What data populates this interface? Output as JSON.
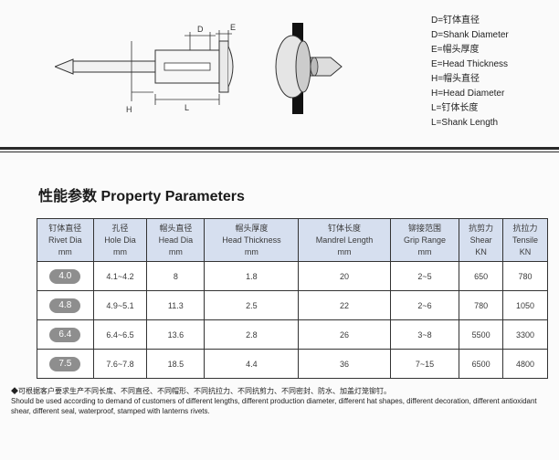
{
  "legend": {
    "d1": "D=钉体直径",
    "d2": "D=Shank Diameter",
    "e1": "E=帽头厚度",
    "e2": "E=Head Thickness",
    "h1": "H=帽头直径",
    "h2": "H=Head Diameter",
    "l1": "L=钉体长度",
    "l2": "L=Shank Length"
  },
  "section_title": "性能参数  Property Parameters",
  "table": {
    "headers": [
      {
        "cn": "钉体直径",
        "en": "Rivet Dia",
        "unit": "mm"
      },
      {
        "cn": "孔径",
        "en": "Hole Dia",
        "unit": "mm"
      },
      {
        "cn": "帽头直径",
        "en": "Head Dia",
        "unit": "mm"
      },
      {
        "cn": "帽头厚度",
        "en": "Head Thickness",
        "unit": "mm"
      },
      {
        "cn": "钉体长度",
        "en": "Mandrel Length",
        "unit": "mm"
      },
      {
        "cn": "铆接范围",
        "en": "Grip Range",
        "unit": "mm"
      },
      {
        "cn": "抗剪力",
        "en": "Shear",
        "unit": "KN"
      },
      {
        "cn": "抗拉力",
        "en": "Tensile",
        "unit": "KN"
      }
    ],
    "rows": [
      {
        "dia": "4.0",
        "hole": "4.1~4.2",
        "head": "8",
        "thick": "1.8",
        "mandrel": "20",
        "grip": "2~5",
        "shear": "650",
        "tensile": "780"
      },
      {
        "dia": "4.8",
        "hole": "4.9~5.1",
        "head": "11.3",
        "thick": "2.5",
        "mandrel": "22",
        "grip": "2~6",
        "shear": "780",
        "tensile": "1050"
      },
      {
        "dia": "6.4",
        "hole": "6.4~6.5",
        "head": "13.6",
        "thick": "2.8",
        "mandrel": "26",
        "grip": "3~8",
        "shear": "5500",
        "tensile": "3300"
      },
      {
        "dia": "7.5",
        "hole": "7.6~7.8",
        "head": "18.5",
        "thick": "4.4",
        "mandrel": "36",
        "grip": "7~15",
        "shear": "6500",
        "tensile": "4800"
      }
    ]
  },
  "footnote": {
    "line1": "◆可根据客户要求生产不同长度、不同直径、不同帽形、不同抗拉力、不同抗剪力、不同密封、防水、加盖灯笼铆钉。",
    "line2": "Should be used according to demand of customers of different lengths, different production diameter, different hat shapes, different decoration, different antioxidant shear, different seal, waterproof, stamped with lanterns rivets."
  },
  "diagram": {
    "labels": {
      "D": "D",
      "E": "E",
      "H": "H",
      "L": "L"
    },
    "colors": {
      "outline": "#333",
      "dim": "#333",
      "fill_light": "#f5f5f5",
      "black": "#111"
    }
  }
}
